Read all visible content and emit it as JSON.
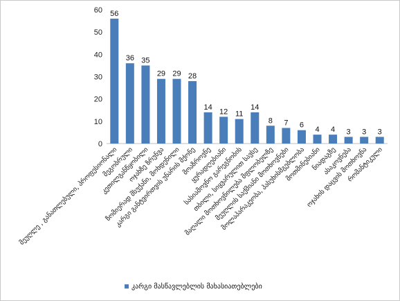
{
  "chart_data": {
    "type": "bar",
    "title": "",
    "xlabel": "",
    "ylabel": "",
    "ylim": [
      0,
      60
    ],
    "yticks": [
      0,
      10,
      20,
      30,
      40,
      50,
      60
    ],
    "grid": false,
    "legend_position": "bottom",
    "bar_color": "#4a7ebb",
    "categories": [
      "მეუღლე , განათლებული, პროფესიონალი",
      "მეგობრული",
      "კეთილგანწყობილი",
      "ოჯახზე ზრუნვა",
      "ზომიერად მსუქანი, მოხდენილი",
      "კარგი განტვირთვის უნარის მქონე",
      "მოაზროვნე",
      "ყურადღებიანი",
      "სასიამოვნო გარეგნობის",
      "თბილი, სიყვარულით სავსე",
      "მაღალი მოთხოვნილება მფლობელზე",
      "მეუღლის საქმიანი მოთხოვნები",
      "მოლაპარაკეობა, პასუხისმგებლობა",
      "მოთმინებიანი",
      "ნიადაგზე",
      "ასაკოვნება",
      "ოჯახის დაცვის მოთხოვნა",
      "რომანტიკული"
    ],
    "series": [
      {
        "name": "კარგი მასწავლებლის მახასიათებლები",
        "values": [
          56,
          36,
          35,
          29,
          29,
          28,
          14,
          12,
          11,
          14,
          8,
          7,
          6,
          4,
          4,
          3,
          3,
          3
        ]
      }
    ]
  }
}
